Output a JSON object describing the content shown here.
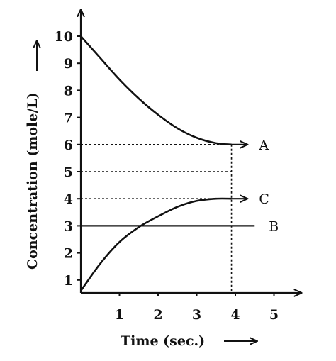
{
  "chart_data": {
    "type": "line",
    "title": "",
    "xlabel": "Time (sec.)",
    "ylabel": "Concentration (mole/L)",
    "xlim": [
      0,
      5.7
    ],
    "ylim": [
      0.5,
      10.5
    ],
    "x_ticks": [
      "1",
      "2",
      "3",
      "4",
      "5"
    ],
    "y_ticks": [
      "1",
      "2",
      "3",
      "4",
      "5",
      "6",
      "7",
      "8",
      "9",
      "10"
    ],
    "grid": false,
    "series": [
      {
        "name": "A",
        "x": [
          0,
          0.5,
          1,
          1.5,
          2,
          2.5,
          3,
          3.5,
          3.9
        ],
        "y": [
          10,
          9.2,
          8.4,
          7.7,
          7.1,
          6.6,
          6.25,
          6.05,
          6.0
        ],
        "end_x": 4.3
      },
      {
        "name": "B",
        "x": [
          0,
          4.5
        ],
        "y": [
          3,
          3
        ],
        "end_x": 4.5
      },
      {
        "name": "C",
        "x": [
          0,
          0.5,
          1,
          1.5,
          2,
          2.5,
          3,
          3.5,
          3.9
        ],
        "y": [
          0.6,
          1.6,
          2.4,
          2.95,
          3.35,
          3.7,
          3.92,
          4.0,
          4.0
        ],
        "end_x": 4.3
      }
    ],
    "reference_lines": [
      {
        "y": 6,
        "x_to": 3.9
      },
      {
        "y": 5,
        "x_to": 3.9
      },
      {
        "y": 4,
        "x_to": 3.9
      },
      {
        "x": 3.9,
        "y_from": 0.5,
        "y_to": 6
      }
    ]
  }
}
